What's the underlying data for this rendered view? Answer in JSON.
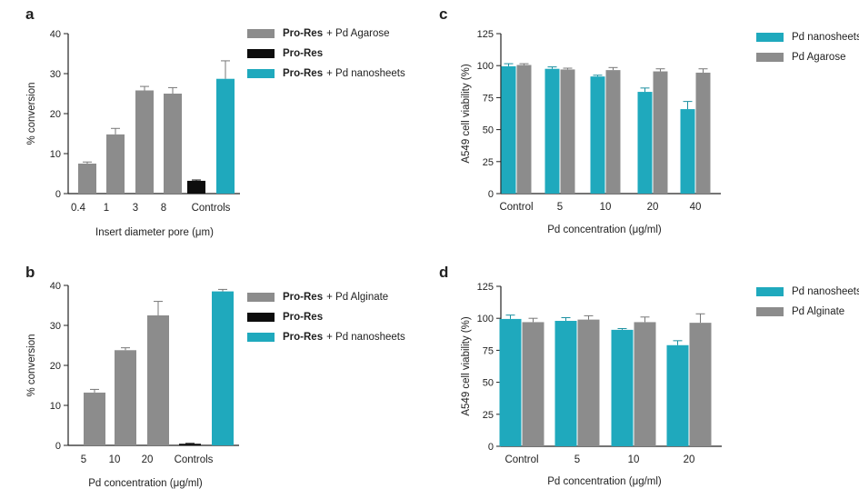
{
  "panels": {
    "a": {
      "letter": "a",
      "legend": [
        {
          "bold": "Pro-Res",
          "rest": " + Pd Agarose",
          "color": "#8c8c8c"
        },
        {
          "bold": "Pro-Res",
          "rest": "",
          "color": "#0d0d0d"
        },
        {
          "bold": "Pro-Res",
          "rest": " + Pd nanosheets",
          "color": "#1fa9bd"
        }
      ]
    },
    "b": {
      "letter": "b",
      "legend": [
        {
          "bold": "Pro-Res",
          "rest": " + Pd Alginate",
          "color": "#8c8c8c"
        },
        {
          "bold": "Pro-Res",
          "rest": "",
          "color": "#0d0d0d"
        },
        {
          "bold": "Pro-Res",
          "rest": " + Pd nanosheets",
          "color": "#1fa9bd"
        }
      ]
    },
    "c": {
      "letter": "c",
      "legend": [
        {
          "bold": "",
          "rest": "Pd nanosheets",
          "color": "#1fa9bd"
        },
        {
          "bold": "",
          "rest": "Pd Agarose",
          "color": "#8c8c8c"
        }
      ]
    },
    "d": {
      "letter": "d",
      "legend": [
        {
          "bold": "",
          "rest": "Pd nanosheets",
          "color": "#1fa9bd"
        },
        {
          "bold": "",
          "rest": "Pd Alginate",
          "color": "#8c8c8c"
        }
      ]
    }
  },
  "chart_data": [
    {
      "id": "a",
      "type": "bar",
      "xlabel": "Insert diameter pore (μm)",
      "ylabel": "% conversion",
      "ylim": [
        0,
        40
      ],
      "yticks": [
        0,
        10,
        20,
        30,
        40
      ],
      "categories": [
        "0.4",
        "1",
        "3",
        "8",
        "Controls"
      ],
      "bars": [
        {
          "category": "0.4",
          "value": 7.5,
          "error": 0.4,
          "color": "#8c8c8c"
        },
        {
          "category": "1",
          "value": 14.8,
          "error": 1.5,
          "color": "#8c8c8c"
        },
        {
          "category": "3",
          "value": 25.8,
          "error": 1.0,
          "color": "#8c8c8c"
        },
        {
          "category": "8",
          "value": 25.0,
          "error": 1.5,
          "color": "#8c8c8c"
        },
        {
          "category": "Controls",
          "value": 3.2,
          "error": 0.2,
          "color": "#0d0d0d"
        },
        {
          "category": "Controls",
          "value": 28.7,
          "error": 4.5,
          "color": "#1fa9bd"
        }
      ]
    },
    {
      "id": "b",
      "type": "bar",
      "xlabel": "Pd concentration (μg/ml)",
      "ylabel": "% conversion",
      "ylim": [
        0,
        40
      ],
      "yticks": [
        0,
        10,
        20,
        30,
        40
      ],
      "categories": [
        "5",
        "10",
        "20",
        "Controls"
      ],
      "bars": [
        {
          "category": "5",
          "value": 13.2,
          "error": 0.8,
          "color": "#8c8c8c"
        },
        {
          "category": "10",
          "value": 23.8,
          "error": 0.6,
          "color": "#8c8c8c"
        },
        {
          "category": "20",
          "value": 32.5,
          "error": 3.5,
          "color": "#8c8c8c"
        },
        {
          "category": "Controls",
          "value": 0.4,
          "error": 0.1,
          "color": "#0d0d0d"
        },
        {
          "category": "Controls",
          "value": 38.5,
          "error": 0.5,
          "color": "#1fa9bd"
        }
      ]
    },
    {
      "id": "c",
      "type": "bar",
      "xlabel": "Pd concentration (μg/ml)",
      "ylabel": "A549 cell viability (%)",
      "ylim": [
        0,
        125
      ],
      "yticks": [
        0,
        25,
        50,
        75,
        100,
        125
      ],
      "categories": [
        "Control",
        "5",
        "10",
        "20",
        "40"
      ],
      "series": [
        {
          "name": "Pd nanosheets",
          "color": "#1fa9bd",
          "values": [
            99.5,
            97.5,
            91.5,
            79.5,
            66
          ],
          "errors": [
            2,
            1.5,
            1,
            3,
            6
          ]
        },
        {
          "name": "Pd Agarose",
          "color": "#8c8c8c",
          "values": [
            100.5,
            97,
            96.5,
            95.5,
            94.5
          ],
          "errors": [
            1,
            1,
            2,
            2,
            3
          ]
        }
      ]
    },
    {
      "id": "d",
      "type": "bar",
      "xlabel": "Pd concentration (μg/ml)",
      "ylabel": "A549 cell viability (%)",
      "ylim": [
        0,
        125
      ],
      "yticks": [
        0,
        25,
        50,
        75,
        100,
        125
      ],
      "categories": [
        "Control",
        "5",
        "10",
        "20"
      ],
      "series": [
        {
          "name": "Pd nanosheets",
          "color": "#1fa9bd",
          "values": [
            99.5,
            98,
            91,
            79
          ],
          "errors": [
            3,
            2.5,
            1,
            3.5
          ]
        },
        {
          "name": "Pd Alginate",
          "color": "#8c8c8c",
          "values": [
            97,
            99,
            97,
            96.5
          ],
          "errors": [
            3,
            3,
            4,
            7
          ]
        }
      ]
    }
  ]
}
